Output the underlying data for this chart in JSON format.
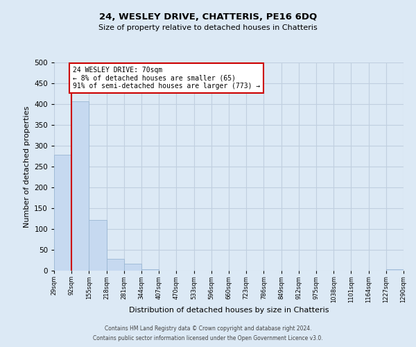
{
  "title": "24, WESLEY DRIVE, CHATTERIS, PE16 6DQ",
  "subtitle": "Size of property relative to detached houses in Chatteris",
  "bar_values": [
    278,
    407,
    122,
    29,
    16,
    4,
    0,
    0,
    0,
    0,
    0,
    0,
    0,
    0,
    0,
    0,
    0,
    0,
    0,
    3
  ],
  "categories": [
    "29sqm",
    "92sqm",
    "155sqm",
    "218sqm",
    "281sqm",
    "344sqm",
    "407sqm",
    "470sqm",
    "533sqm",
    "596sqm",
    "660sqm",
    "723sqm",
    "786sqm",
    "849sqm",
    "912sqm",
    "975sqm",
    "1038sqm",
    "1101sqm",
    "1164sqm",
    "1227sqm",
    "1290sqm"
  ],
  "bar_color": "#c6d9f0",
  "bar_edge_color": "#9ab7d3",
  "marker_line_color": "#cc0000",
  "annotation_text": "24 WESLEY DRIVE: 70sqm\n← 8% of detached houses are smaller (65)\n91% of semi-detached houses are larger (773) →",
  "annotation_box_color": "#ffffff",
  "annotation_box_edge": "#cc0000",
  "xlabel": "Distribution of detached houses by size in Chatteris",
  "ylabel": "Number of detached properties",
  "ylim": [
    0,
    500
  ],
  "yticks": [
    0,
    50,
    100,
    150,
    200,
    250,
    300,
    350,
    400,
    450,
    500
  ],
  "grid_color": "#c0cfe0",
  "background_color": "#dce9f5",
  "footer_line1": "Contains HM Land Registry data © Crown copyright and database right 2024.",
  "footer_line2": "Contains public sector information licensed under the Open Government Licence v3.0."
}
